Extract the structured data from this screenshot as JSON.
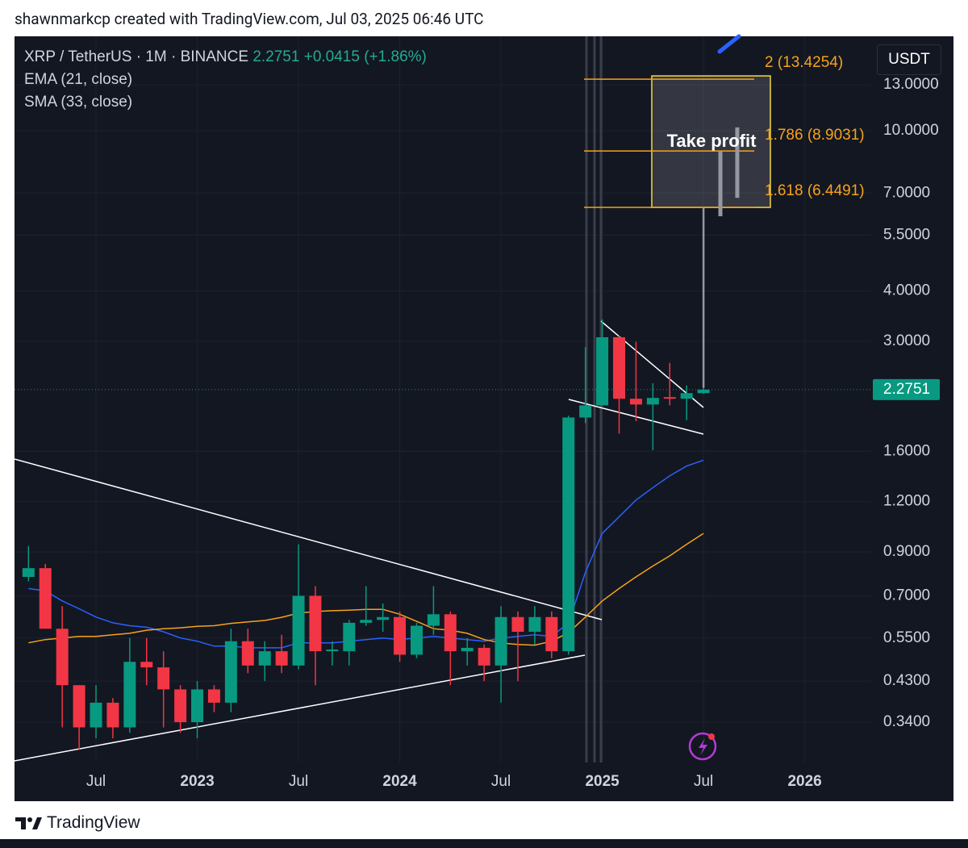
{
  "header": {
    "credit": "shawnmarkcp created with TradingView.com, Jul 03, 2025 06:46 UTC",
    "change": "+0.0415",
    "change_percent": "(+1.86%)",
    "currency_button": "USDT",
    "brand": "TradingView"
  },
  "chart_data": {
    "type": "candlestick",
    "title": "XRP / TetherUS · 1M · BINANCE",
    "x": [
      "2022-03",
      "2022-04",
      "2022-05",
      "2022-06",
      "2022-07",
      "2022-08",
      "2022-09",
      "2022-10",
      "2022-11",
      "2022-12",
      "2023-01",
      "2023-02",
      "2023-03",
      "2023-04",
      "2023-05",
      "2023-06",
      "2023-07",
      "2023-08",
      "2023-09",
      "2023-10",
      "2023-11",
      "2023-12",
      "2024-01",
      "2024-02",
      "2024-03",
      "2024-04",
      "2024-05",
      "2024-06",
      "2024-07",
      "2024-08",
      "2024-09",
      "2024-10",
      "2024-11",
      "2024-12",
      "2025-01",
      "2025-02",
      "2025-03",
      "2025-04",
      "2025-05",
      "2025-06",
      "2025-07"
    ],
    "open": [
      0.78,
      0.82,
      0.58,
      0.42,
      0.33,
      0.38,
      0.33,
      0.48,
      0.465,
      0.41,
      0.34,
      0.41,
      0.38,
      0.54,
      0.47,
      0.51,
      0.47,
      0.7,
      0.51,
      0.51,
      0.6,
      0.61,
      0.62,
      0.5,
      0.59,
      0.63,
      0.51,
      0.52,
      0.47,
      0.62,
      0.57,
      0.62,
      0.51,
      1.94,
      2.08,
      3.07,
      2.16,
      2.09,
      2.18,
      2.16,
      2.23
    ],
    "high": [
      0.93,
      0.84,
      0.66,
      0.42,
      0.42,
      0.39,
      0.55,
      0.55,
      0.51,
      0.42,
      0.43,
      0.42,
      0.58,
      0.58,
      0.54,
      0.56,
      0.94,
      0.74,
      0.54,
      0.61,
      0.74,
      0.67,
      0.64,
      0.6,
      0.74,
      0.64,
      0.55,
      0.53,
      0.66,
      0.64,
      0.66,
      0.64,
      1.96,
      2.9,
      3.4,
      3.1,
      2.99,
      2.36,
      2.65,
      2.33,
      2.3
    ],
    "low": [
      0.76,
      0.58,
      0.33,
      0.29,
      0.31,
      0.31,
      0.32,
      0.42,
      0.33,
      0.32,
      0.31,
      0.36,
      0.36,
      0.45,
      0.43,
      0.45,
      0.46,
      0.42,
      0.47,
      0.47,
      0.59,
      0.57,
      0.48,
      0.49,
      0.56,
      0.42,
      0.47,
      0.43,
      0.38,
      0.43,
      0.53,
      0.49,
      0.5,
      1.88,
      2.07,
      1.77,
      1.9,
      1.61,
      2.08,
      1.91,
      2.22
    ],
    "close": [
      0.82,
      0.58,
      0.42,
      0.33,
      0.38,
      0.33,
      0.48,
      0.465,
      0.41,
      0.34,
      0.41,
      0.38,
      0.54,
      0.47,
      0.51,
      0.47,
      0.7,
      0.51,
      0.515,
      0.6,
      0.61,
      0.62,
      0.5,
      0.59,
      0.63,
      0.51,
      0.52,
      0.47,
      0.62,
      0.57,
      0.62,
      0.51,
      1.94,
      2.08,
      3.07,
      2.16,
      2.09,
      2.17,
      2.16,
      2.23,
      2.2751
    ],
    "up_color": "#089981",
    "down_color": "#f23645",
    "indicators": [
      {
        "name": "EMA (21, close)",
        "color": "#2962ff",
        "values": [
          0.73,
          0.72,
          0.68,
          0.65,
          0.62,
          0.6,
          0.59,
          0.585,
          0.57,
          0.55,
          0.54,
          0.525,
          0.525,
          0.52,
          0.52,
          0.52,
          0.535,
          0.535,
          0.535,
          0.54,
          0.545,
          0.55,
          0.545,
          0.55,
          0.555,
          0.55,
          0.545,
          0.54,
          0.55,
          0.555,
          0.56,
          0.555,
          0.6,
          0.8,
          1.0,
          1.1,
          1.21,
          1.3,
          1.39,
          1.47,
          1.52
        ]
      },
      {
        "name": "SMA (33, close)",
        "color": "#f7a21b",
        "values": [
          0.535,
          0.545,
          0.55,
          0.555,
          0.555,
          0.56,
          0.565,
          0.575,
          0.58,
          0.583,
          0.588,
          0.59,
          0.598,
          0.603,
          0.608,
          0.619,
          0.634,
          0.64,
          0.643,
          0.645,
          0.648,
          0.648,
          0.63,
          0.605,
          0.58,
          0.575,
          0.565,
          0.545,
          0.535,
          0.53,
          0.528,
          0.54,
          0.567,
          0.62,
          0.68,
          0.73,
          0.78,
          0.83,
          0.88,
          0.94,
          1.0
        ]
      }
    ],
    "projection": {
      "x": [
        "2025-07",
        "2025-08",
        "2025-09"
      ],
      "low": [
        2.3,
        6.13,
        6.81
      ],
      "high": [
        6.45,
        8.87,
        10.19
      ],
      "color": "#9598a1"
    },
    "fib_levels": [
      {
        "value": 13.4254,
        "label": "2 (13.4254)"
      },
      {
        "value": 8.9031,
        "label": "1.786 (8.9031)"
      },
      {
        "value": 6.4491,
        "label": "1.618 (6.4491)"
      }
    ],
    "fib_color": "#f7a21b",
    "annotation": "Take profit",
    "log_scale": true,
    "grid": true,
    "ylim": [
      0.27,
      17.15
    ],
    "yticks": [
      {
        "value": 0.34,
        "label": "0.3400"
      },
      {
        "value": 0.43,
        "label": "0.4300"
      },
      {
        "value": 0.55,
        "label": "0.5500"
      },
      {
        "value": 0.7,
        "label": "0.7000"
      },
      {
        "value": 0.9,
        "label": "0.9000"
      },
      {
        "value": 1.2,
        "label": "1.2000"
      },
      {
        "value": 1.6,
        "label": "1.6000"
      },
      {
        "value": 3,
        "label": "3.0000"
      },
      {
        "value": 4,
        "label": "4.0000"
      },
      {
        "value": 5.5,
        "label": "5.5000"
      },
      {
        "value": 7,
        "label": "7.0000"
      },
      {
        "value": 10,
        "label": "10.0000"
      },
      {
        "value": 13,
        "label": "13.0000"
      }
    ],
    "xticks": [
      {
        "value": "2022-07",
        "label": "Jul"
      },
      {
        "value": "2023-01",
        "label": "2023"
      },
      {
        "value": "2023-07",
        "label": "Jul"
      },
      {
        "value": "2024-01",
        "label": "2024"
      },
      {
        "value": "2024-07",
        "label": "Jul"
      },
      {
        "value": "2025-01",
        "label": "2025"
      },
      {
        "value": "2025-07",
        "label": "Jul"
      },
      {
        "value": "2026-01",
        "label": "2026"
      }
    ]
  }
}
